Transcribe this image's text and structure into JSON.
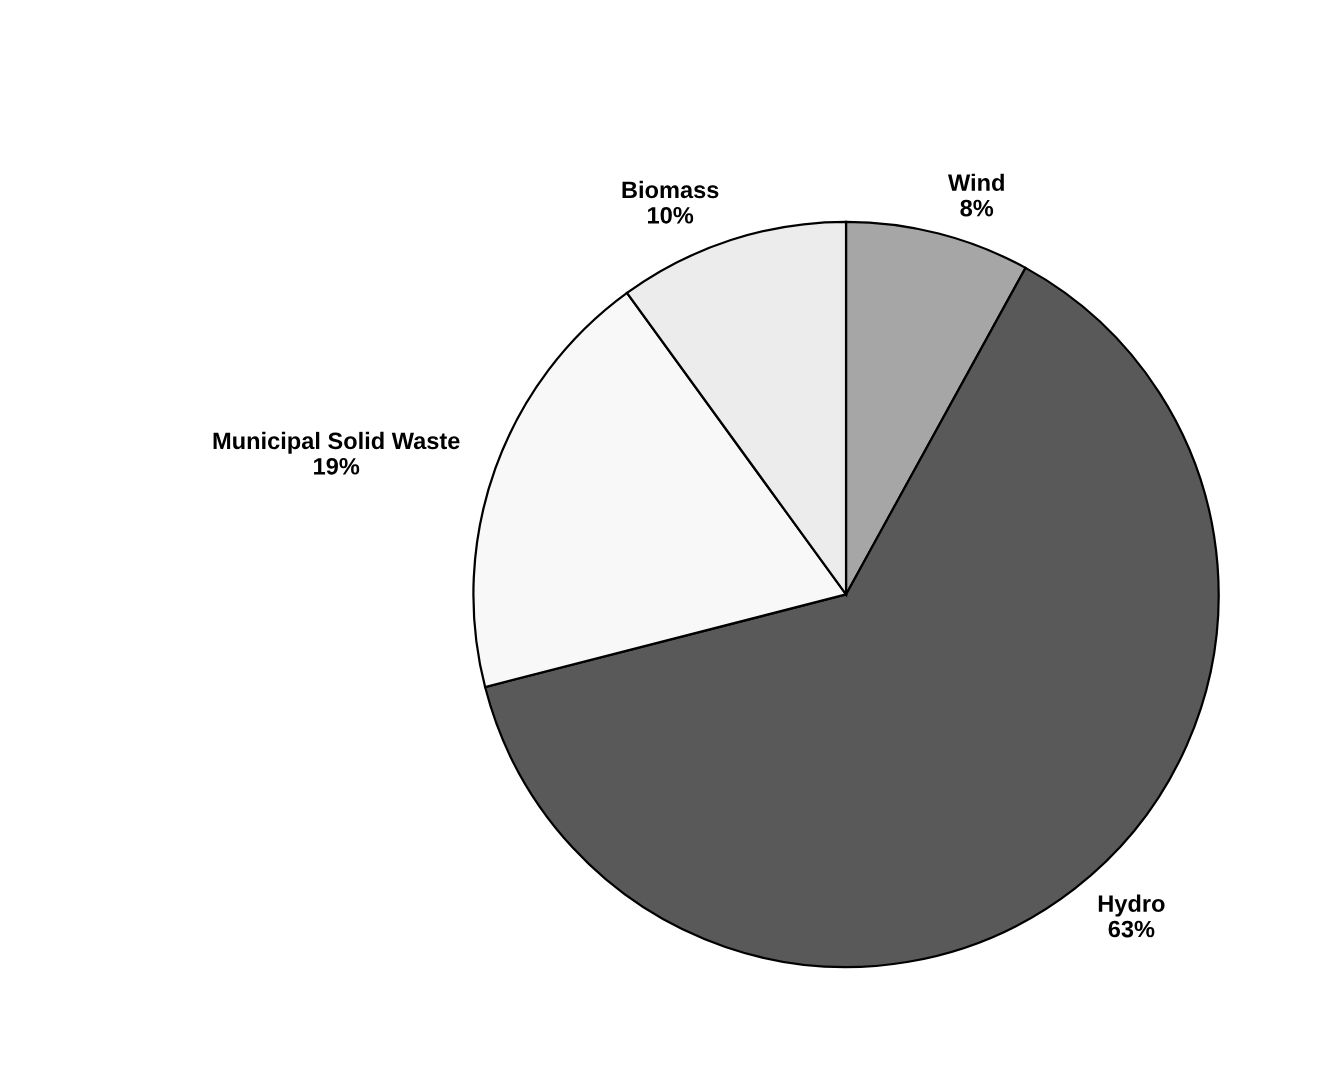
{
  "chart_data": {
    "type": "pie",
    "categories": [
      "Wind",
      "Hydro",
      "Municipal Solid Waste",
      "Biomass"
    ],
    "values": [
      8,
      63,
      19,
      10
    ],
    "colors": [
      "#a6a6a6",
      "#595959",
      "#f8f8f8",
      "#ececec"
    ],
    "value_labels": [
      "8%",
      "63%",
      "19%",
      "10%"
    ]
  }
}
